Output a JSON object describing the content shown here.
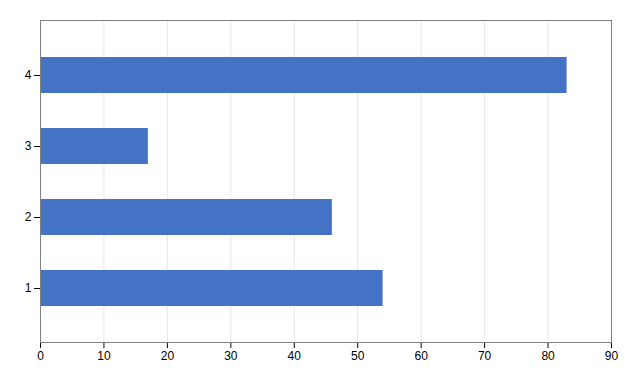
{
  "chart_data": {
    "type": "bar",
    "orientation": "horizontal",
    "categories": [
      "1",
      "2",
      "3",
      "4"
    ],
    "values": [
      54,
      46,
      17,
      83
    ],
    "color": "#4472c4",
    "xlim": [
      0,
      90
    ],
    "xticks": [
      0,
      10,
      20,
      30,
      40,
      50,
      60,
      70,
      80,
      90
    ],
    "grid": true
  }
}
